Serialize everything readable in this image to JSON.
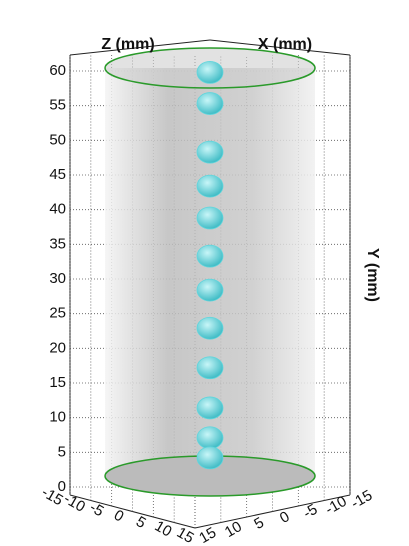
{
  "chart_data": {
    "type": "scatter",
    "z_label": "Z (mm)",
    "x_label": "X (mm)",
    "y_label": "Y (mm)",
    "series": [
      {
        "color": "#5fd6dd",
        "x": [
          0,
          0,
          0,
          0,
          0,
          0,
          0,
          0,
          0,
          0,
          0,
          0
        ],
        "values": [
          59.8,
          55.3,
          48.3,
          43.4,
          38.8,
          33.3,
          28.4,
          22.9,
          17.2,
          11.4,
          7.1,
          4.2
        ]
      }
    ],
    "ylim": [
      0,
      60
    ],
    "yticks": [
      0,
      5,
      10,
      15,
      20,
      25,
      30,
      35,
      40,
      45,
      50,
      55,
      60
    ],
    "zlim": [
      -15,
      15
    ],
    "zticks": [
      -15,
      -10,
      -5,
      0,
      5,
      10,
      15
    ],
    "xlim": [
      15,
      -15
    ],
    "xticks": [
      15,
      10,
      5,
      0,
      -5,
      -10,
      -15
    ],
    "grid": true
  }
}
